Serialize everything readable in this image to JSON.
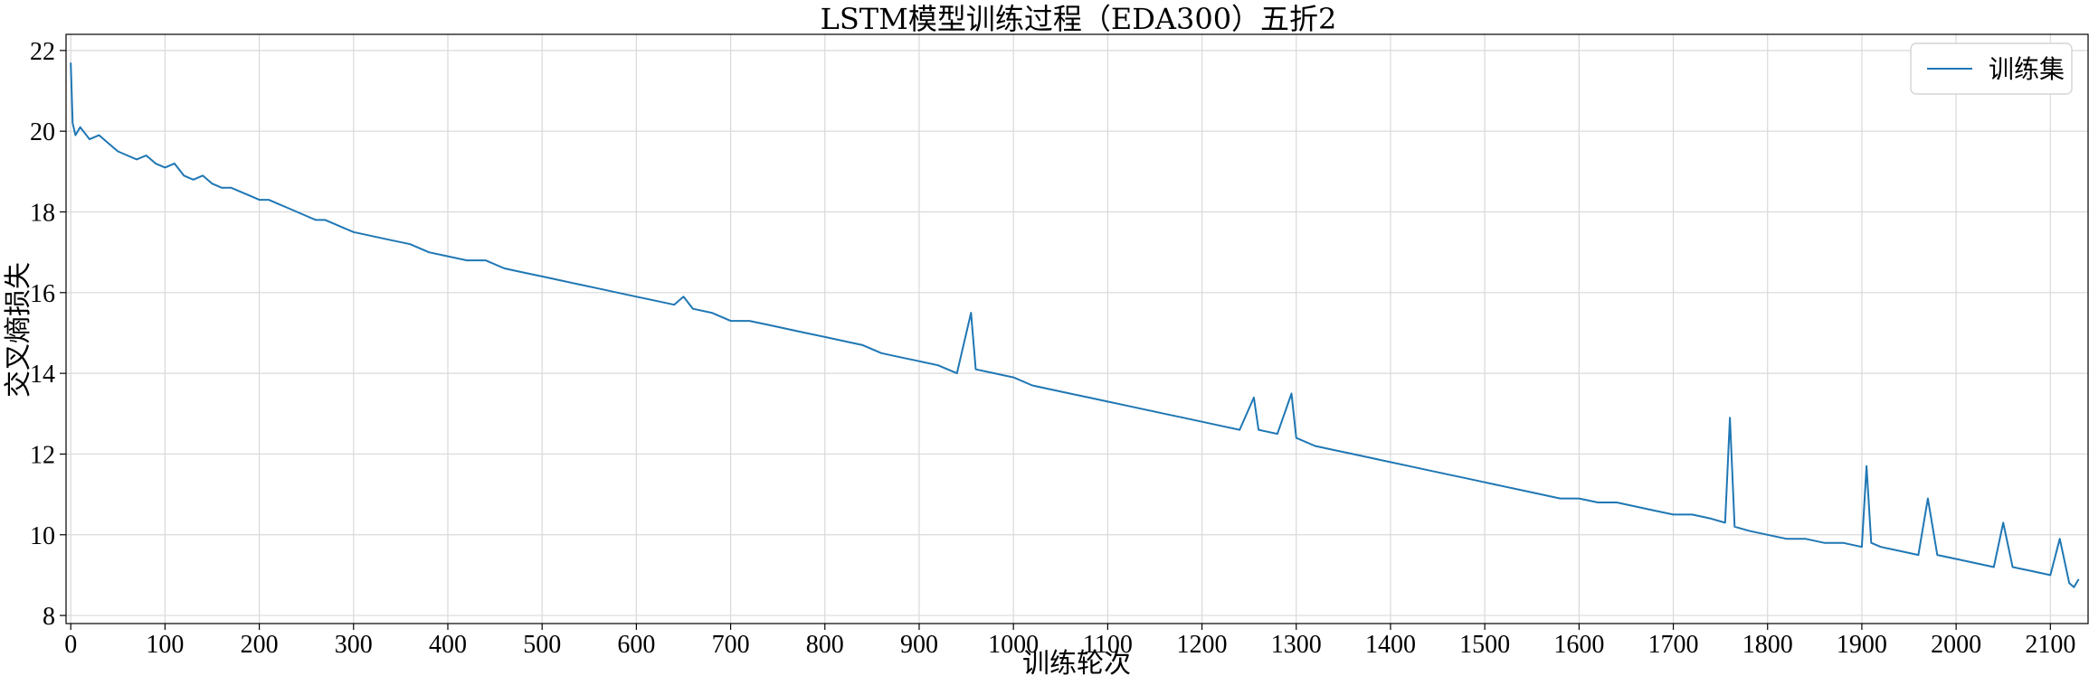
{
  "chart_data": {
    "type": "line",
    "title": "LSTM模型训练过程（EDA300）五折2",
    "xlabel": "训练轮次",
    "ylabel": "交叉熵损失",
    "xlim": [
      -5,
      2140
    ],
    "ylim": [
      7.8,
      22.4
    ],
    "xticks": [
      0,
      100,
      200,
      300,
      400,
      500,
      600,
      700,
      800,
      900,
      1000,
      1100,
      1200,
      1300,
      1400,
      1500,
      1600,
      1700,
      1800,
      1900,
      2000,
      2100
    ],
    "yticks": [
      8,
      10,
      12,
      14,
      16,
      18,
      20,
      22
    ],
    "grid": true,
    "legend_position": "top-right",
    "series": [
      {
        "name": "训练集",
        "color": "#1f77b4",
        "x": [
          0,
          2,
          5,
          10,
          20,
          30,
          40,
          50,
          60,
          70,
          80,
          90,
          100,
          110,
          120,
          130,
          140,
          150,
          160,
          170,
          180,
          190,
          200,
          210,
          220,
          230,
          240,
          250,
          260,
          270,
          280,
          290,
          300,
          320,
          340,
          360,
          380,
          400,
          420,
          440,
          460,
          480,
          500,
          520,
          540,
          560,
          580,
          600,
          620,
          640,
          650,
          660,
          680,
          700,
          720,
          740,
          760,
          780,
          800,
          820,
          840,
          860,
          880,
          900,
          920,
          940,
          955,
          960,
          980,
          1000,
          1020,
          1040,
          1060,
          1080,
          1100,
          1120,
          1140,
          1160,
          1180,
          1200,
          1220,
          1240,
          1255,
          1260,
          1280,
          1295,
          1300,
          1320,
          1340,
          1360,
          1380,
          1400,
          1420,
          1440,
          1460,
          1480,
          1500,
          1520,
          1540,
          1560,
          1580,
          1600,
          1620,
          1640,
          1660,
          1680,
          1700,
          1720,
          1740,
          1755,
          1760,
          1765,
          1780,
          1800,
          1820,
          1840,
          1860,
          1880,
          1900,
          1905,
          1910,
          1920,
          1940,
          1960,
          1970,
          1980,
          2000,
          2020,
          2040,
          2050,
          2060,
          2080,
          2100,
          2110,
          2120,
          2125,
          2130
        ],
        "y": [
          21.7,
          20.2,
          19.9,
          20.1,
          19.8,
          19.9,
          19.7,
          19.5,
          19.4,
          19.3,
          19.4,
          19.2,
          19.1,
          19.2,
          18.9,
          18.8,
          18.9,
          18.7,
          18.6,
          18.6,
          18.5,
          18.4,
          18.3,
          18.3,
          18.2,
          18.1,
          18.0,
          17.9,
          17.8,
          17.8,
          17.7,
          17.6,
          17.5,
          17.4,
          17.3,
          17.2,
          17.0,
          16.9,
          16.8,
          16.8,
          16.6,
          16.5,
          16.4,
          16.3,
          16.2,
          16.1,
          16.0,
          15.9,
          15.8,
          15.7,
          15.9,
          15.6,
          15.5,
          15.3,
          15.3,
          15.2,
          15.1,
          15.0,
          14.9,
          14.8,
          14.7,
          14.5,
          14.4,
          14.3,
          14.2,
          14.0,
          15.5,
          14.1,
          14.0,
          13.9,
          13.7,
          13.6,
          13.5,
          13.4,
          13.3,
          13.2,
          13.1,
          13.0,
          12.9,
          12.8,
          12.7,
          12.6,
          13.4,
          12.6,
          12.5,
          13.5,
          12.4,
          12.2,
          12.1,
          12.0,
          11.9,
          11.8,
          11.7,
          11.6,
          11.5,
          11.4,
          11.3,
          11.2,
          11.1,
          11.0,
          10.9,
          10.9,
          10.8,
          10.8,
          10.7,
          10.6,
          10.5,
          10.5,
          10.4,
          10.3,
          12.9,
          10.2,
          10.1,
          10.0,
          9.9,
          9.9,
          9.8,
          9.8,
          9.7,
          11.7,
          9.8,
          9.7,
          9.6,
          9.5,
          10.9,
          9.5,
          9.4,
          9.3,
          9.2,
          10.3,
          9.2,
          9.1,
          9.0,
          9.9,
          8.8,
          8.7,
          8.9
        ]
      }
    ]
  }
}
